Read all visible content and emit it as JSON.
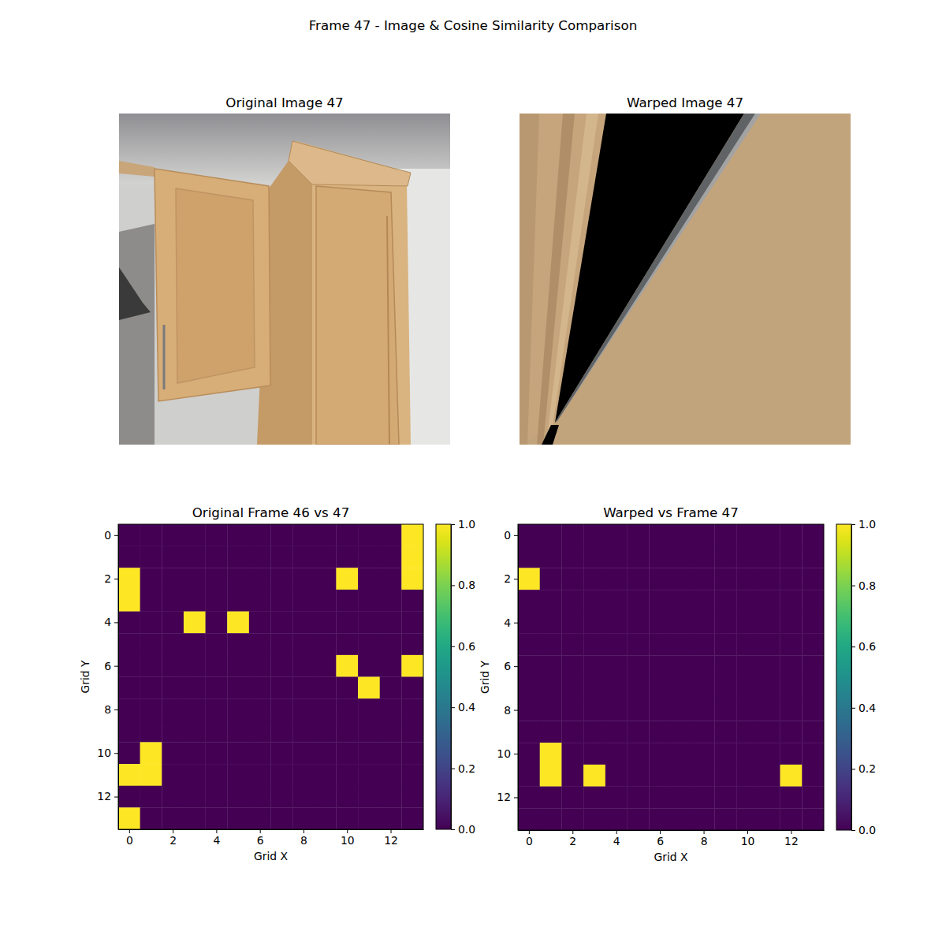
{
  "title": "Frame 47 - Image & Cosine Similarity Comparison",
  "chart_data": [
    {
      "type": "image",
      "title": "Original Image 47"
    },
    {
      "type": "image",
      "title": "Warped Image 47"
    },
    {
      "type": "heatmap",
      "title": "Original Frame 46 vs 47",
      "xlabel": "Grid X",
      "ylabel": "Grid Y",
      "xlim": [
        -0.5,
        13.5
      ],
      "ylim": [
        13.5,
        -0.5
      ],
      "xticks": [
        0,
        2,
        4,
        6,
        8,
        10,
        12
      ],
      "yticks": [
        0,
        2,
        4,
        6,
        8,
        10,
        12
      ],
      "cells": [
        [
          0,
          0,
          0,
          0,
          0,
          0,
          0,
          0,
          0,
          0,
          0,
          0,
          0,
          1
        ],
        [
          0,
          0,
          0,
          0,
          0,
          0,
          0,
          0,
          0,
          0,
          0,
          0,
          0,
          1
        ],
        [
          1,
          0,
          0,
          0,
          0,
          0,
          0,
          0,
          0,
          0,
          1,
          0,
          0,
          1
        ],
        [
          1,
          0,
          0,
          0,
          0,
          0,
          0,
          0,
          0,
          0,
          0,
          0,
          0,
          0
        ],
        [
          0,
          0,
          0,
          1,
          0,
          1,
          0,
          0,
          0,
          0,
          0,
          0,
          0,
          0
        ],
        [
          0,
          0,
          0,
          0,
          0,
          0,
          0,
          0,
          0,
          0,
          0,
          0,
          0,
          0
        ],
        [
          0,
          0,
          0,
          0,
          0,
          0,
          0,
          0,
          0,
          0,
          1,
          0,
          0,
          1
        ],
        [
          0,
          0,
          0,
          0,
          0,
          0,
          0,
          0,
          0,
          0,
          0,
          1,
          0,
          0
        ],
        [
          0,
          0,
          0,
          0,
          0,
          0,
          0,
          0,
          0,
          0,
          0,
          0,
          0,
          0
        ],
        [
          0,
          0,
          0,
          0,
          0,
          0,
          0,
          0,
          0,
          0,
          0,
          0,
          0,
          0
        ],
        [
          0,
          1,
          0,
          0,
          0,
          0,
          0,
          0,
          0,
          0,
          0,
          0,
          0,
          0
        ],
        [
          1,
          1,
          0,
          0,
          0,
          0,
          0,
          0,
          0,
          0,
          0,
          0,
          0,
          0
        ],
        [
          0,
          0,
          0,
          0,
          0,
          0,
          0,
          0,
          0,
          0,
          0,
          0,
          0,
          0
        ],
        [
          1,
          0,
          0,
          0,
          0,
          0,
          0,
          0,
          0,
          0,
          0,
          0,
          0,
          0
        ]
      ],
      "colorbar": {
        "range": [
          0,
          1
        ],
        "ticks": [
          {
            "value": 0,
            "label": "0.0"
          },
          {
            "value": 0.2,
            "label": "0.2"
          },
          {
            "value": 0.4,
            "label": "0.4"
          },
          {
            "value": 0.6,
            "label": "0.6"
          },
          {
            "value": 0.8,
            "label": "0.8"
          },
          {
            "value": 1,
            "label": "1.0"
          }
        ]
      }
    },
    {
      "type": "heatmap",
      "title": "Warped vs Frame 47",
      "xlabel": "Grid X",
      "ylabel": "Grid Y",
      "xlim": [
        -0.5,
        13.5
      ],
      "ylim": [
        13.5,
        -0.5
      ],
      "xticks": [
        0,
        2,
        4,
        6,
        8,
        10,
        12
      ],
      "yticks": [
        0,
        2,
        4,
        6,
        8,
        10,
        12
      ],
      "cells": [
        [
          0,
          0,
          0,
          0,
          0,
          0,
          0,
          0,
          0,
          0,
          0,
          0,
          0,
          0
        ],
        [
          0,
          0,
          0,
          0,
          0,
          0,
          0,
          0,
          0,
          0,
          0,
          0,
          0,
          0
        ],
        [
          1,
          0,
          0,
          0,
          0,
          0,
          0,
          0,
          0,
          0,
          0,
          0,
          0,
          0
        ],
        [
          0,
          0,
          0,
          0,
          0,
          0,
          0,
          0,
          0,
          0,
          0,
          0,
          0,
          0
        ],
        [
          0,
          0,
          0,
          0,
          0,
          0,
          0,
          0,
          0,
          0,
          0,
          0,
          0,
          0
        ],
        [
          0,
          0,
          0,
          0,
          0,
          0,
          0,
          0,
          0,
          0,
          0,
          0,
          0,
          0
        ],
        [
          0,
          0,
          0,
          0,
          0,
          0,
          0,
          0,
          0,
          0,
          0,
          0,
          0,
          0
        ],
        [
          0,
          0,
          0,
          0,
          0,
          0,
          0,
          0,
          0,
          0,
          0,
          0,
          0,
          0
        ],
        [
          0,
          0,
          0,
          0,
          0,
          0,
          0,
          0,
          0,
          0,
          0,
          0,
          0,
          0
        ],
        [
          0,
          0,
          0,
          0,
          0,
          0,
          0,
          0,
          0,
          0,
          0,
          0,
          0,
          0
        ],
        [
          0,
          1,
          0,
          0,
          0,
          0,
          0,
          0,
          0,
          0,
          0,
          0,
          0,
          0
        ],
        [
          0,
          1,
          0,
          1,
          0,
          0,
          0,
          0,
          0,
          0,
          0,
          0,
          1,
          0
        ],
        [
          0,
          0,
          0,
          0,
          0,
          0,
          0,
          0,
          0,
          0,
          0,
          0,
          0,
          0
        ],
        [
          0,
          0,
          0,
          0,
          0,
          0,
          0,
          0,
          0,
          0,
          0,
          0,
          0,
          0
        ]
      ],
      "colorbar": {
        "range": [
          0,
          1
        ],
        "ticks": [
          {
            "value": 0,
            "label": "0.0"
          },
          {
            "value": 0.2,
            "label": "0.2"
          },
          {
            "value": 0.4,
            "label": "0.4"
          },
          {
            "value": 0.6,
            "label": "0.6"
          },
          {
            "value": 0.8,
            "label": "0.8"
          },
          {
            "value": 1,
            "label": "1.0"
          }
        ]
      }
    }
  ]
}
